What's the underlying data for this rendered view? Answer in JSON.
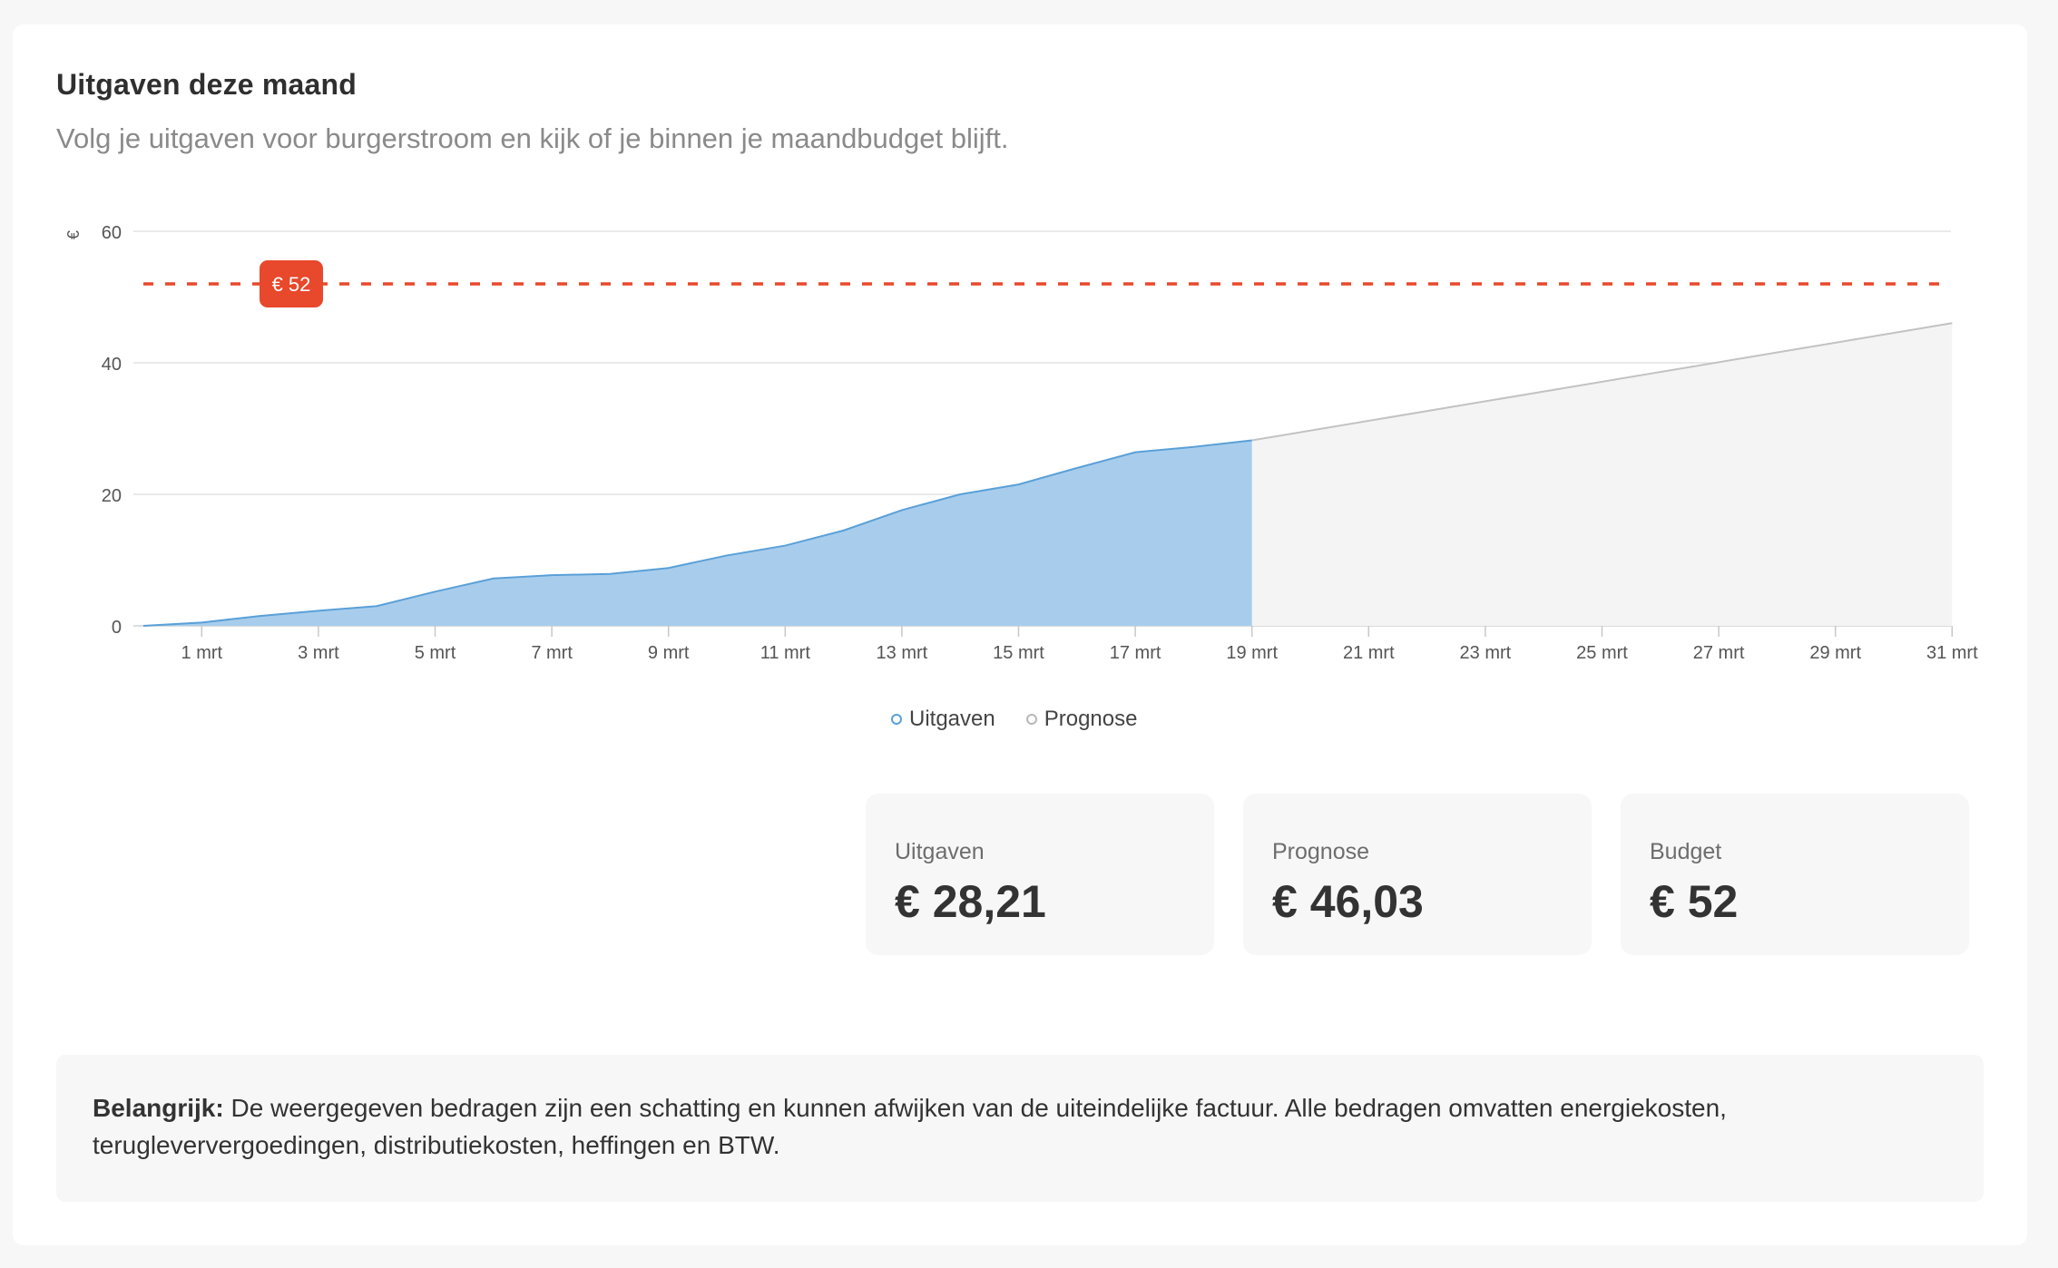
{
  "header": {
    "title": "Uitgaven deze maand",
    "subtitle": "Volg je uitgaven voor burgerstroom en kijk of je binnen je maandbudget blijft."
  },
  "chart_data": {
    "type": "area",
    "ylabel": "€",
    "ylim": [
      0,
      60
    ],
    "yticks": [
      0,
      20,
      40,
      60
    ],
    "xlim": [
      0,
      31
    ],
    "xticks": [
      {
        "x": 1,
        "label": "1 mrt"
      },
      {
        "x": 3,
        "label": "3 mrt"
      },
      {
        "x": 5,
        "label": "5 mrt"
      },
      {
        "x": 7,
        "label": "7 mrt"
      },
      {
        "x": 9,
        "label": "9 mrt"
      },
      {
        "x": 11,
        "label": "11 mrt"
      },
      {
        "x": 13,
        "label": "13 mrt"
      },
      {
        "x": 15,
        "label": "15 mrt"
      },
      {
        "x": 17,
        "label": "17 mrt"
      },
      {
        "x": 19,
        "label": "19 mrt"
      },
      {
        "x": 21,
        "label": "21 mrt"
      },
      {
        "x": 23,
        "label": "23 mrt"
      },
      {
        "x": 25,
        "label": "25 mrt"
      },
      {
        "x": 27,
        "label": "27 mrt"
      },
      {
        "x": 29,
        "label": "29 mrt"
      },
      {
        "x": 31,
        "label": "31 mrt"
      }
    ],
    "grid": true,
    "legend_position": "bottom-center",
    "series": [
      {
        "name": "Uitgaven",
        "color": "#a8cdec",
        "line_color": "#5aa0d8",
        "x": [
          0,
          1,
          2,
          3,
          4,
          5,
          6,
          7,
          8,
          9,
          10,
          11,
          12,
          13,
          14,
          15,
          16,
          17,
          18,
          19
        ],
        "y": [
          0,
          0.5,
          1.5,
          2.3,
          3.0,
          5.2,
          7.2,
          7.7,
          7.9,
          8.8,
          10.7,
          12.2,
          14.5,
          17.6,
          20.0,
          21.5,
          24.0,
          26.4,
          27.2,
          28.21
        ]
      },
      {
        "name": "Prognose",
        "color": "#f4f4f4",
        "line_color": "#c2c2c2",
        "x": [
          19,
          31
        ],
        "y": [
          28.21,
          46.03
        ]
      }
    ],
    "reference_line": {
      "value": 52,
      "label": "€ 52",
      "color": "#e8482b"
    }
  },
  "stats": [
    {
      "label": "Uitgaven",
      "value": "€ 28,21"
    },
    {
      "label": "Prognose",
      "value": "€ 46,03"
    },
    {
      "label": "Budget",
      "value": "€ 52"
    }
  ],
  "notice": {
    "bold": "Belangrijk:",
    "text": " De weergegeven bedragen zijn een schatting en kunnen afwijken van de uiteindelijke factuur. Alle bedragen omvatten energiekosten, terugleververgoedingen, distributiekosten, heffingen en BTW."
  }
}
